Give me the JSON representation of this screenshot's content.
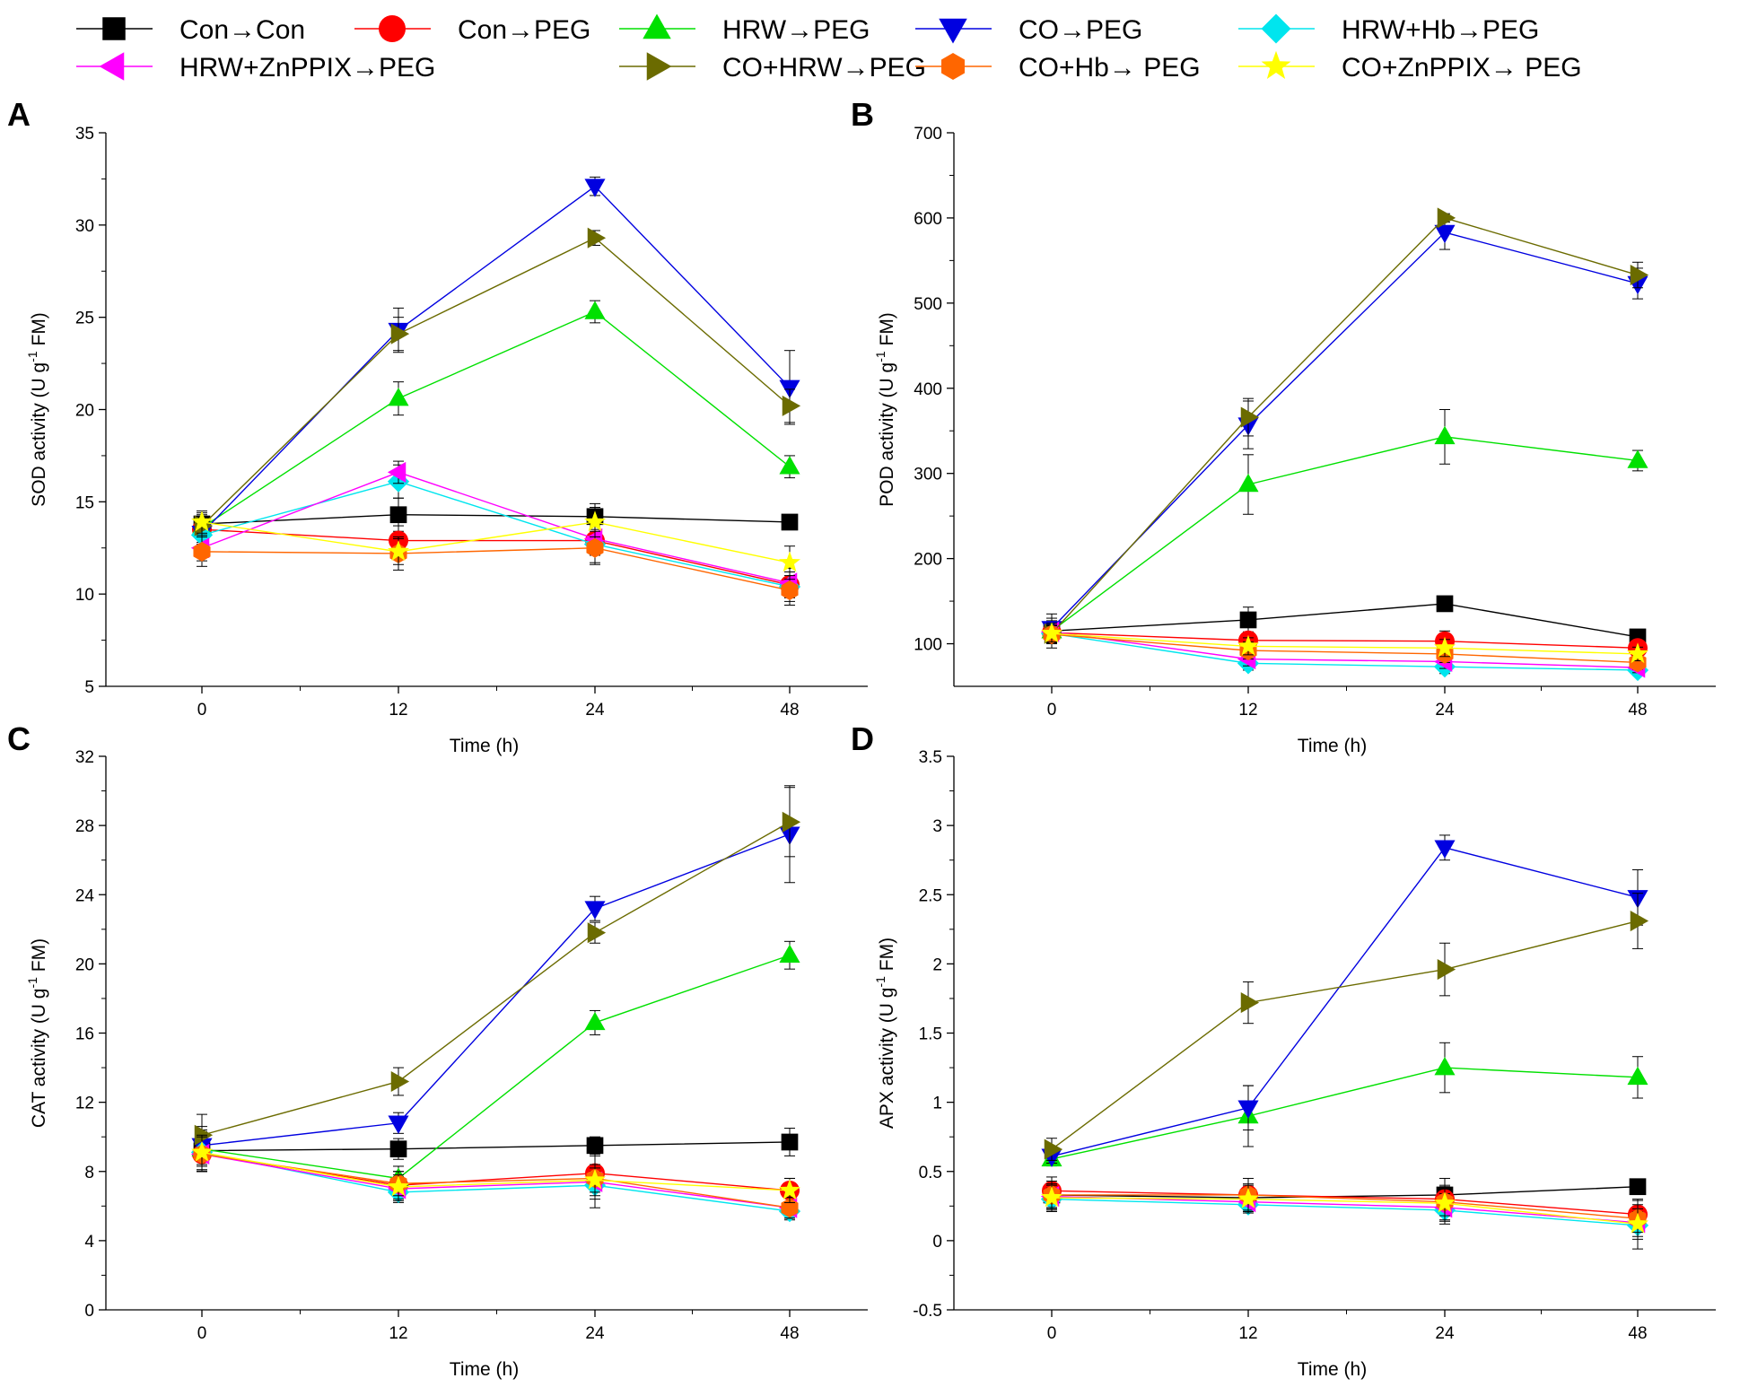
{
  "legend": [
    {
      "name": "Con→Con",
      "color": "#000000",
      "marker": "square"
    },
    {
      "name": "Con→PEG",
      "color": "#ff0000",
      "marker": "circle"
    },
    {
      "name": "HRW→PEG",
      "color": "#00e000",
      "marker": "triangle-up"
    },
    {
      "name": "CO→PEG",
      "color": "#0000e0",
      "marker": "triangle-down"
    },
    {
      "name": "HRW+Hb→PEG",
      "color": "#00e5ee",
      "marker": "diamond"
    },
    {
      "name": "HRW+ZnPPIX→PEG",
      "color": "#ff00ff",
      "marker": "triangle-left"
    },
    {
      "name": "CO+HRW→PEG",
      "color": "#6b6b00",
      "marker": "triangle-right"
    },
    {
      "name": "CO+Hb→ PEG",
      "color": "#ff6600",
      "marker": "hexagon"
    },
    {
      "name": "CO+ZnPPIX→ PEG",
      "color": "#ffff00",
      "marker": "star"
    }
  ],
  "chart_data": [
    {
      "panel": "A",
      "type": "line",
      "xlabel": "Time (h)",
      "ylabel_main": "SOD activity (U g",
      "ylabel_sup": "-1",
      "ylabel_end": " FM)",
      "categories": [
        "0",
        "12",
        "24",
        "48"
      ],
      "ylim": [
        5,
        35
      ],
      "yticks": [
        5,
        10,
        15,
        20,
        25,
        30,
        35
      ],
      "series": [
        {
          "name": "Con→Con",
          "values": [
            13.8,
            14.3,
            14.2,
            13.9
          ],
          "err": [
            0.6,
            0.9,
            0.7,
            0.4
          ]
        },
        {
          "name": "Con→PEG",
          "values": [
            13.5,
            12.9,
            12.9,
            10.5
          ],
          "err": [
            0.7,
            0.8,
            0.8,
            0.7
          ]
        },
        {
          "name": "HRW→PEG",
          "values": [
            13.6,
            20.6,
            25.3,
            16.9
          ],
          "err": [
            0.5,
            0.9,
            0.6,
            0.6
          ]
        },
        {
          "name": "CO→PEG",
          "values": [
            13.3,
            24.3,
            32.1,
            21.2
          ],
          "err": [
            0.6,
            1.2,
            0.5,
            2.0
          ]
        },
        {
          "name": "HRW+Hb→PEG",
          "values": [
            13.2,
            16.1,
            12.7,
            10.4
          ],
          "err": [
            0.8,
            0.9,
            1.0,
            0.8
          ]
        },
        {
          "name": "HRW+ZnPPIX→PEG",
          "values": [
            12.5,
            16.6,
            13.0,
            10.6
          ],
          "err": [
            0.7,
            0.6,
            0.9,
            0.8
          ]
        },
        {
          "name": "CO+HRW→PEG",
          "values": [
            13.7,
            24.1,
            29.3,
            20.2
          ],
          "err": [
            0.6,
            0.9,
            0.4,
            0.9
          ]
        },
        {
          "name": "CO+Hb→ PEG",
          "values": [
            12.3,
            12.2,
            12.5,
            10.2
          ],
          "err": [
            0.8,
            0.9,
            0.9,
            0.8
          ]
        },
        {
          "name": "CO+ZnPPIX→ PEG",
          "values": [
            13.9,
            12.3,
            13.9,
            11.7
          ],
          "err": [
            0.6,
            0.7,
            0.8,
            0.9
          ]
        }
      ]
    },
    {
      "panel": "B",
      "type": "line",
      "xlabel": "Time (h)",
      "ylabel_main": "POD activity (U g",
      "ylabel_sup": "-1",
      "ylabel_end": " FM)",
      "categories": [
        "0",
        "12",
        "24",
        "48"
      ],
      "ylim": [
        50,
        700
      ],
      "yticks": [
        100,
        200,
        300,
        400,
        500,
        600,
        700
      ],
      "series": [
        {
          "name": "Con→Con",
          "values": [
            115,
            128,
            147,
            108
          ],
          "err": [
            20,
            15,
            8,
            8
          ]
        },
        {
          "name": "Con→PEG",
          "values": [
            113,
            104,
            103,
            95
          ],
          "err": [
            10,
            10,
            12,
            8
          ]
        },
        {
          "name": "HRW→PEG",
          "values": [
            115,
            287,
            343,
            315
          ],
          "err": [
            12,
            35,
            32,
            12
          ]
        },
        {
          "name": "CO→PEG",
          "values": [
            118,
            357,
            583,
            523
          ],
          "err": [
            12,
            28,
            20,
            18
          ]
        },
        {
          "name": "HRW+Hb→PEG",
          "values": [
            112,
            77,
            73,
            69
          ],
          "err": [
            10,
            8,
            8,
            6
          ]
        },
        {
          "name": "HRW+ZnPPIX→PEG",
          "values": [
            114,
            82,
            79,
            72
          ],
          "err": [
            10,
            8,
            8,
            6
          ]
        },
        {
          "name": "CO+HRW→PEG",
          "values": [
            112,
            366,
            600,
            533
          ],
          "err": [
            12,
            22,
            5,
            15
          ]
        },
        {
          "name": "CO+Hb→ PEG",
          "values": [
            111,
            92,
            88,
            78
          ],
          "err": [
            10,
            10,
            10,
            8
          ]
        },
        {
          "name": "CO+ZnPPIX→ PEG",
          "values": [
            112,
            97,
            95,
            88
          ],
          "err": [
            10,
            10,
            10,
            8
          ]
        }
      ]
    },
    {
      "panel": "C",
      "type": "line",
      "xlabel": "Time (h)",
      "ylabel_main": "CAT activity (U g",
      "ylabel_sup": "-1",
      "ylabel_end": " FM)",
      "categories": [
        "0",
        "12",
        "24",
        "48"
      ],
      "ylim": [
        0,
        32
      ],
      "yticks": [
        0,
        4,
        8,
        12,
        16,
        20,
        24,
        28,
        32
      ],
      "series": [
        {
          "name": "Con→Con",
          "values": [
            9.2,
            9.3,
            9.5,
            9.7
          ],
          "err": [
            1.2,
            0.6,
            0.5,
            0.8
          ]
        },
        {
          "name": "Con→PEG",
          "values": [
            9.0,
            7.2,
            7.9,
            6.9
          ],
          "err": [
            1.0,
            0.8,
            1.0,
            0.7
          ]
        },
        {
          "name": "HRW→PEG",
          "values": [
            9.3,
            7.6,
            16.6,
            20.5
          ],
          "err": [
            1.0,
            0.7,
            0.7,
            0.8
          ]
        },
        {
          "name": "CO→PEG",
          "values": [
            9.5,
            10.8,
            23.2,
            27.5
          ],
          "err": [
            1.1,
            0.6,
            0.7,
            2.8
          ]
        },
        {
          "name": "HRW+Hb→PEG",
          "values": [
            9.1,
            6.8,
            7.2,
            5.7
          ],
          "err": [
            1.0,
            0.6,
            0.8,
            0.5
          ]
        },
        {
          "name": "HRW+ZnPPIX→PEG",
          "values": [
            9.0,
            7.0,
            7.4,
            5.9
          ],
          "err": [
            1.0,
            0.7,
            0.8,
            0.6
          ]
        },
        {
          "name": "CO+HRW→PEG",
          "values": [
            10.1,
            13.2,
            21.8,
            28.2
          ],
          "err": [
            1.2,
            0.8,
            0.6,
            2.0
          ]
        },
        {
          "name": "CO+Hb→ PEG",
          "values": [
            9.0,
            7.3,
            7.6,
            5.9
          ],
          "err": [
            1.0,
            0.7,
            0.8,
            0.6
          ]
        },
        {
          "name": "CO+ZnPPIX→ PEG",
          "values": [
            9.1,
            7.1,
            7.5,
            6.9
          ],
          "err": [
            1.0,
            0.7,
            1.6,
            0.7
          ]
        }
      ]
    },
    {
      "panel": "D",
      "type": "line",
      "xlabel": "Time (h)",
      "ylabel_main": "APX activity (U g",
      "ylabel_sup": "-1",
      "ylabel_end": " FM)",
      "categories": [
        "0",
        "12",
        "24",
        "48"
      ],
      "ylim": [
        -0.5,
        3.5
      ],
      "yticks": [
        -0.5,
        0.0,
        0.5,
        1.0,
        1.5,
        2.0,
        2.5,
        3.0,
        3.5
      ],
      "series": [
        {
          "name": "Con→Con",
          "values": [
            0.33,
            0.31,
            0.33,
            0.39
          ],
          "err": [
            0.1,
            0.08,
            0.12,
            0.05
          ]
        },
        {
          "name": "Con→PEG",
          "values": [
            0.36,
            0.33,
            0.3,
            0.19
          ],
          "err": [
            0.1,
            0.08,
            0.1,
            0.1
          ]
        },
        {
          "name": "HRW→PEG",
          "values": [
            0.59,
            0.9,
            1.25,
            1.18
          ],
          "err": [
            0.05,
            0.22,
            0.18,
            0.15
          ]
        },
        {
          "name": "CO→PEG",
          "values": [
            0.61,
            0.96,
            2.84,
            2.48
          ],
          "err": [
            0.05,
            0.16,
            0.09,
            0.2
          ]
        },
        {
          "name": "HRW+Hb→PEG",
          "values": [
            0.3,
            0.26,
            0.22,
            0.11
          ],
          "err": [
            0.08,
            0.06,
            0.1,
            0.1
          ]
        },
        {
          "name": "HRW+ZnPPIX→PEG",
          "values": [
            0.32,
            0.28,
            0.24,
            0.13
          ],
          "err": [
            0.08,
            0.06,
            0.1,
            0.1
          ]
        },
        {
          "name": "CO+HRW→PEG",
          "values": [
            0.66,
            1.72,
            1.96,
            2.31
          ],
          "err": [
            0.08,
            0.15,
            0.19,
            0.2
          ]
        },
        {
          "name": "CO+Hb→ PEG",
          "values": [
            0.33,
            0.33,
            0.28,
            0.16
          ],
          "err": [
            0.1,
            0.12,
            0.1,
            0.1
          ]
        },
        {
          "name": "CO+ZnPPIX→ PEG",
          "values": [
            0.31,
            0.3,
            0.27,
            0.12
          ],
          "err": [
            0.1,
            0.1,
            0.12,
            0.18
          ]
        }
      ]
    }
  ]
}
